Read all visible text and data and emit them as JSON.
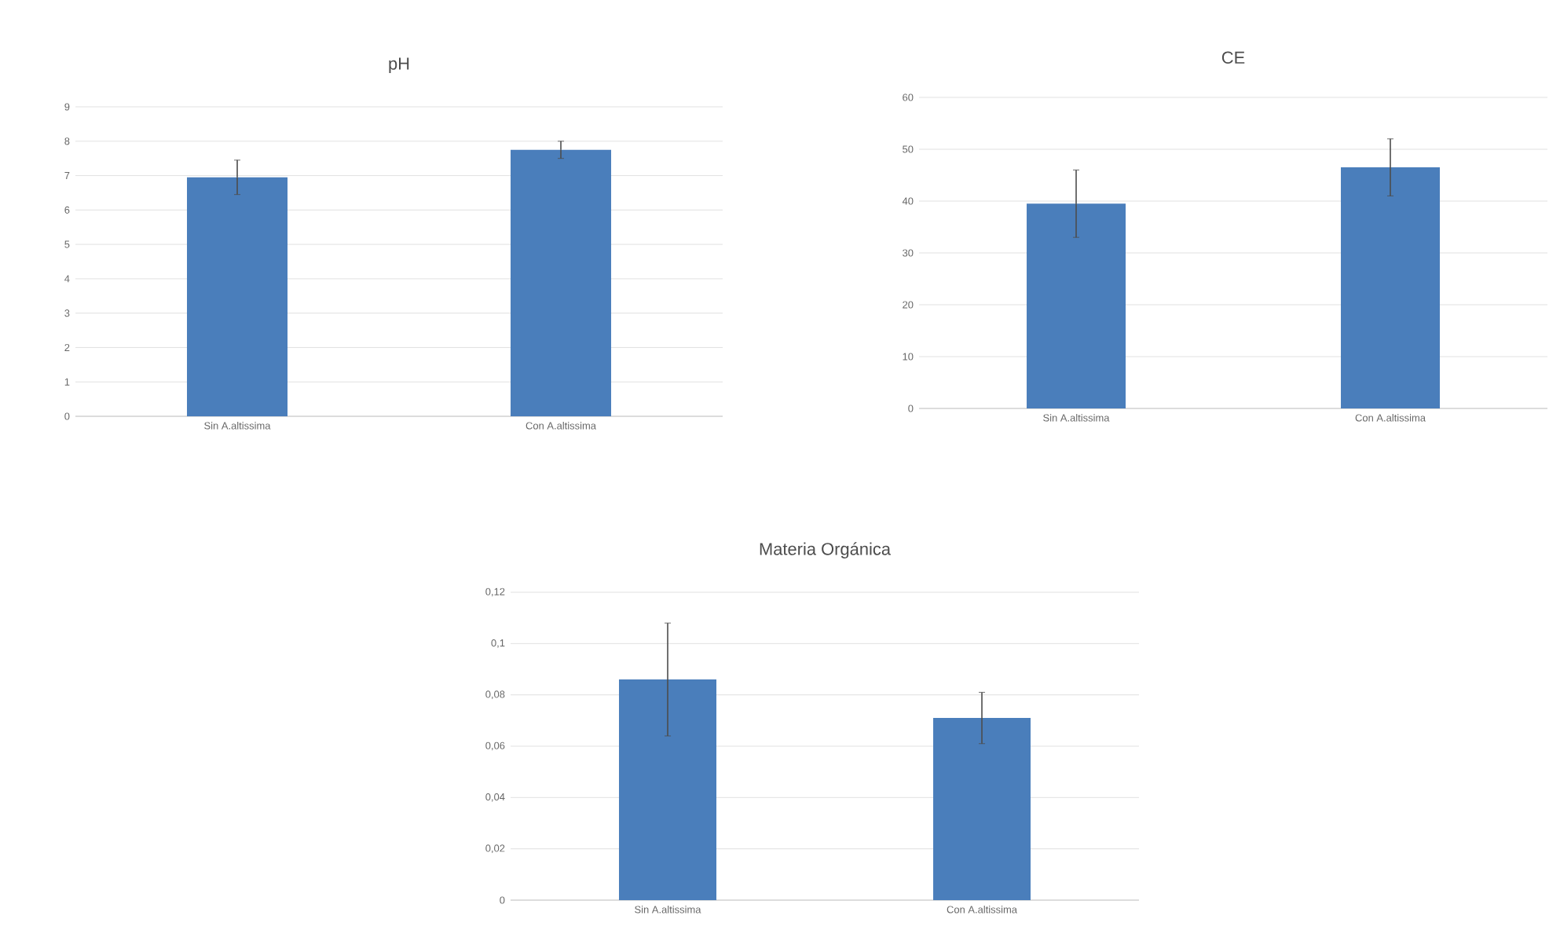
{
  "chart_data": [
    {
      "type": "bar",
      "title": "pH",
      "categories": [
        "Sin A.altissima",
        "Con A.altissima"
      ],
      "values": [
        6.95,
        7.75
      ],
      "errors": [
        0.5,
        0.25
      ],
      "color": "#4a7ebb",
      "ylim": [
        0,
        9
      ],
      "yticks": [
        0,
        1,
        2,
        3,
        4,
        5,
        6,
        7,
        8,
        9
      ],
      "grid": "y"
    },
    {
      "type": "bar",
      "title": "CE",
      "categories": [
        "Sin A.altissima",
        "Con A.altissima"
      ],
      "values": [
        39.5,
        46.5
      ],
      "errors": [
        6.5,
        5.5
      ],
      "color": "#4a7ebb",
      "ylim": [
        0,
        60
      ],
      "yticks": [
        0,
        10,
        20,
        30,
        40,
        50,
        60
      ],
      "grid": "y"
    },
    {
      "type": "bar",
      "title": "Materia Orgánica",
      "categories": [
        "Sin A.altissima",
        "Con A.altissima"
      ],
      "values": [
        0.086,
        0.071
      ],
      "errors": [
        0.022,
        0.01
      ],
      "color": "#4a7ebb",
      "ylim": [
        0,
        0.12
      ],
      "yticks": [
        0,
        {
          "value": 0.02,
          "label": "0,02"
        },
        {
          "value": 0.04,
          "label": "0,04"
        },
        {
          "value": 0.06,
          "label": "0,06"
        },
        {
          "value": 0.08,
          "label": "0,08"
        },
        {
          "value": 0.1,
          "label": "0,1"
        },
        {
          "value": 0.12,
          "label": "0,12"
        }
      ],
      "grid": "y"
    }
  ]
}
